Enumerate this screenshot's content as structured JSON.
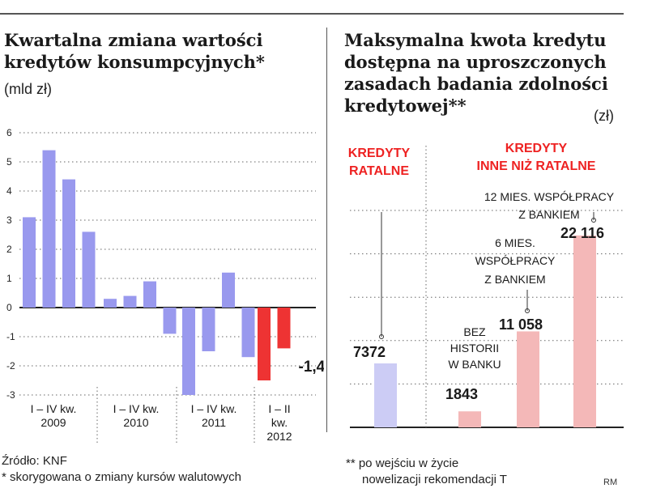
{
  "left_panel": {
    "title_line1": "Kwartalna zmiana wartości",
    "title_line2": "kredytów konsumpcyjnych*",
    "unit": "(mld zł)",
    "source": "Źródło: KNF",
    "footnote": "* skorygowana o zmiany kursów walutowych"
  },
  "right_panel": {
    "title_line1": "Maksymalna kwota kredytu",
    "title_line2": "dostępna na uproszczonych",
    "title_line3": "zasadach badania zdolności",
    "title_line4": "kredytowej**",
    "unit": "(zł)",
    "footnote_line1": "** po wejściu w życie",
    "footnote_line2": "nowelizacji rekomendacji T",
    "credit": "RM"
  },
  "chart_data": [
    {
      "type": "bar",
      "ylim": [
        -3,
        6
      ],
      "yticks": [
        "6",
        "5",
        "4",
        "3",
        "2",
        "1",
        "0",
        "-1",
        "-2",
        "-3"
      ],
      "ytick_values": [
        6,
        5,
        4,
        3,
        2,
        1,
        0,
        -1,
        -2,
        -3
      ],
      "values": [
        3.1,
        5.4,
        4.4,
        2.6,
        0.3,
        0.4,
        0.9,
        -0.9,
        -3.0,
        -1.5,
        1.2,
        -1.7,
        -2.5,
        -1.4
      ],
      "colors": [
        "#9999ee",
        "#9999ee",
        "#9999ee",
        "#9999ee",
        "#9999ee",
        "#9999ee",
        "#9999ee",
        "#9999ee",
        "#9999ee",
        "#9999ee",
        "#9999ee",
        "#9999ee",
        "#ee3333",
        "#ee3333"
      ],
      "groups": [
        {
          "line1": "I – IV kw.",
          "line2": "2009",
          "line3": ""
        },
        {
          "line1": "I – IV kw.",
          "line2": "2010",
          "line3": ""
        },
        {
          "line1": "I – IV kw.",
          "line2": "2011",
          "line3": ""
        },
        {
          "line1": "I – II",
          "line2": "kw.",
          "line3": "2012"
        }
      ],
      "value_label": "-1,4",
      "grid": "dotted"
    },
    {
      "type": "bar",
      "ylim": [
        0,
        25000
      ],
      "groups": [
        {
          "line1": "KREDYTY",
          "line2": "RATALNE"
        },
        {
          "line1": "KREDYTY",
          "line2": "INNE NIŻ RATALNE"
        }
      ],
      "bars": [
        {
          "value": 7372,
          "label": "7372",
          "color": "#ccccf5",
          "note": []
        },
        {
          "value": 1843,
          "label": "1843",
          "color": "#f4b8b8",
          "note": [
            "BEZ",
            "HISTORII",
            "W BANKU"
          ]
        },
        {
          "value": 11058,
          "label": "11 058",
          "color": "#f4b8b8",
          "note": [
            "6 MIES.",
            "WSPÓŁPRACY",
            "Z BANKIEM"
          ]
        },
        {
          "value": 22116,
          "label": "22 116",
          "color": "#f4b8b8",
          "note": [
            "12 MIES. WSPÓŁPRACY",
            "Z BANKIEM"
          ]
        }
      ],
      "grid": "dotted",
      "group_color": "#ee2222"
    }
  ]
}
